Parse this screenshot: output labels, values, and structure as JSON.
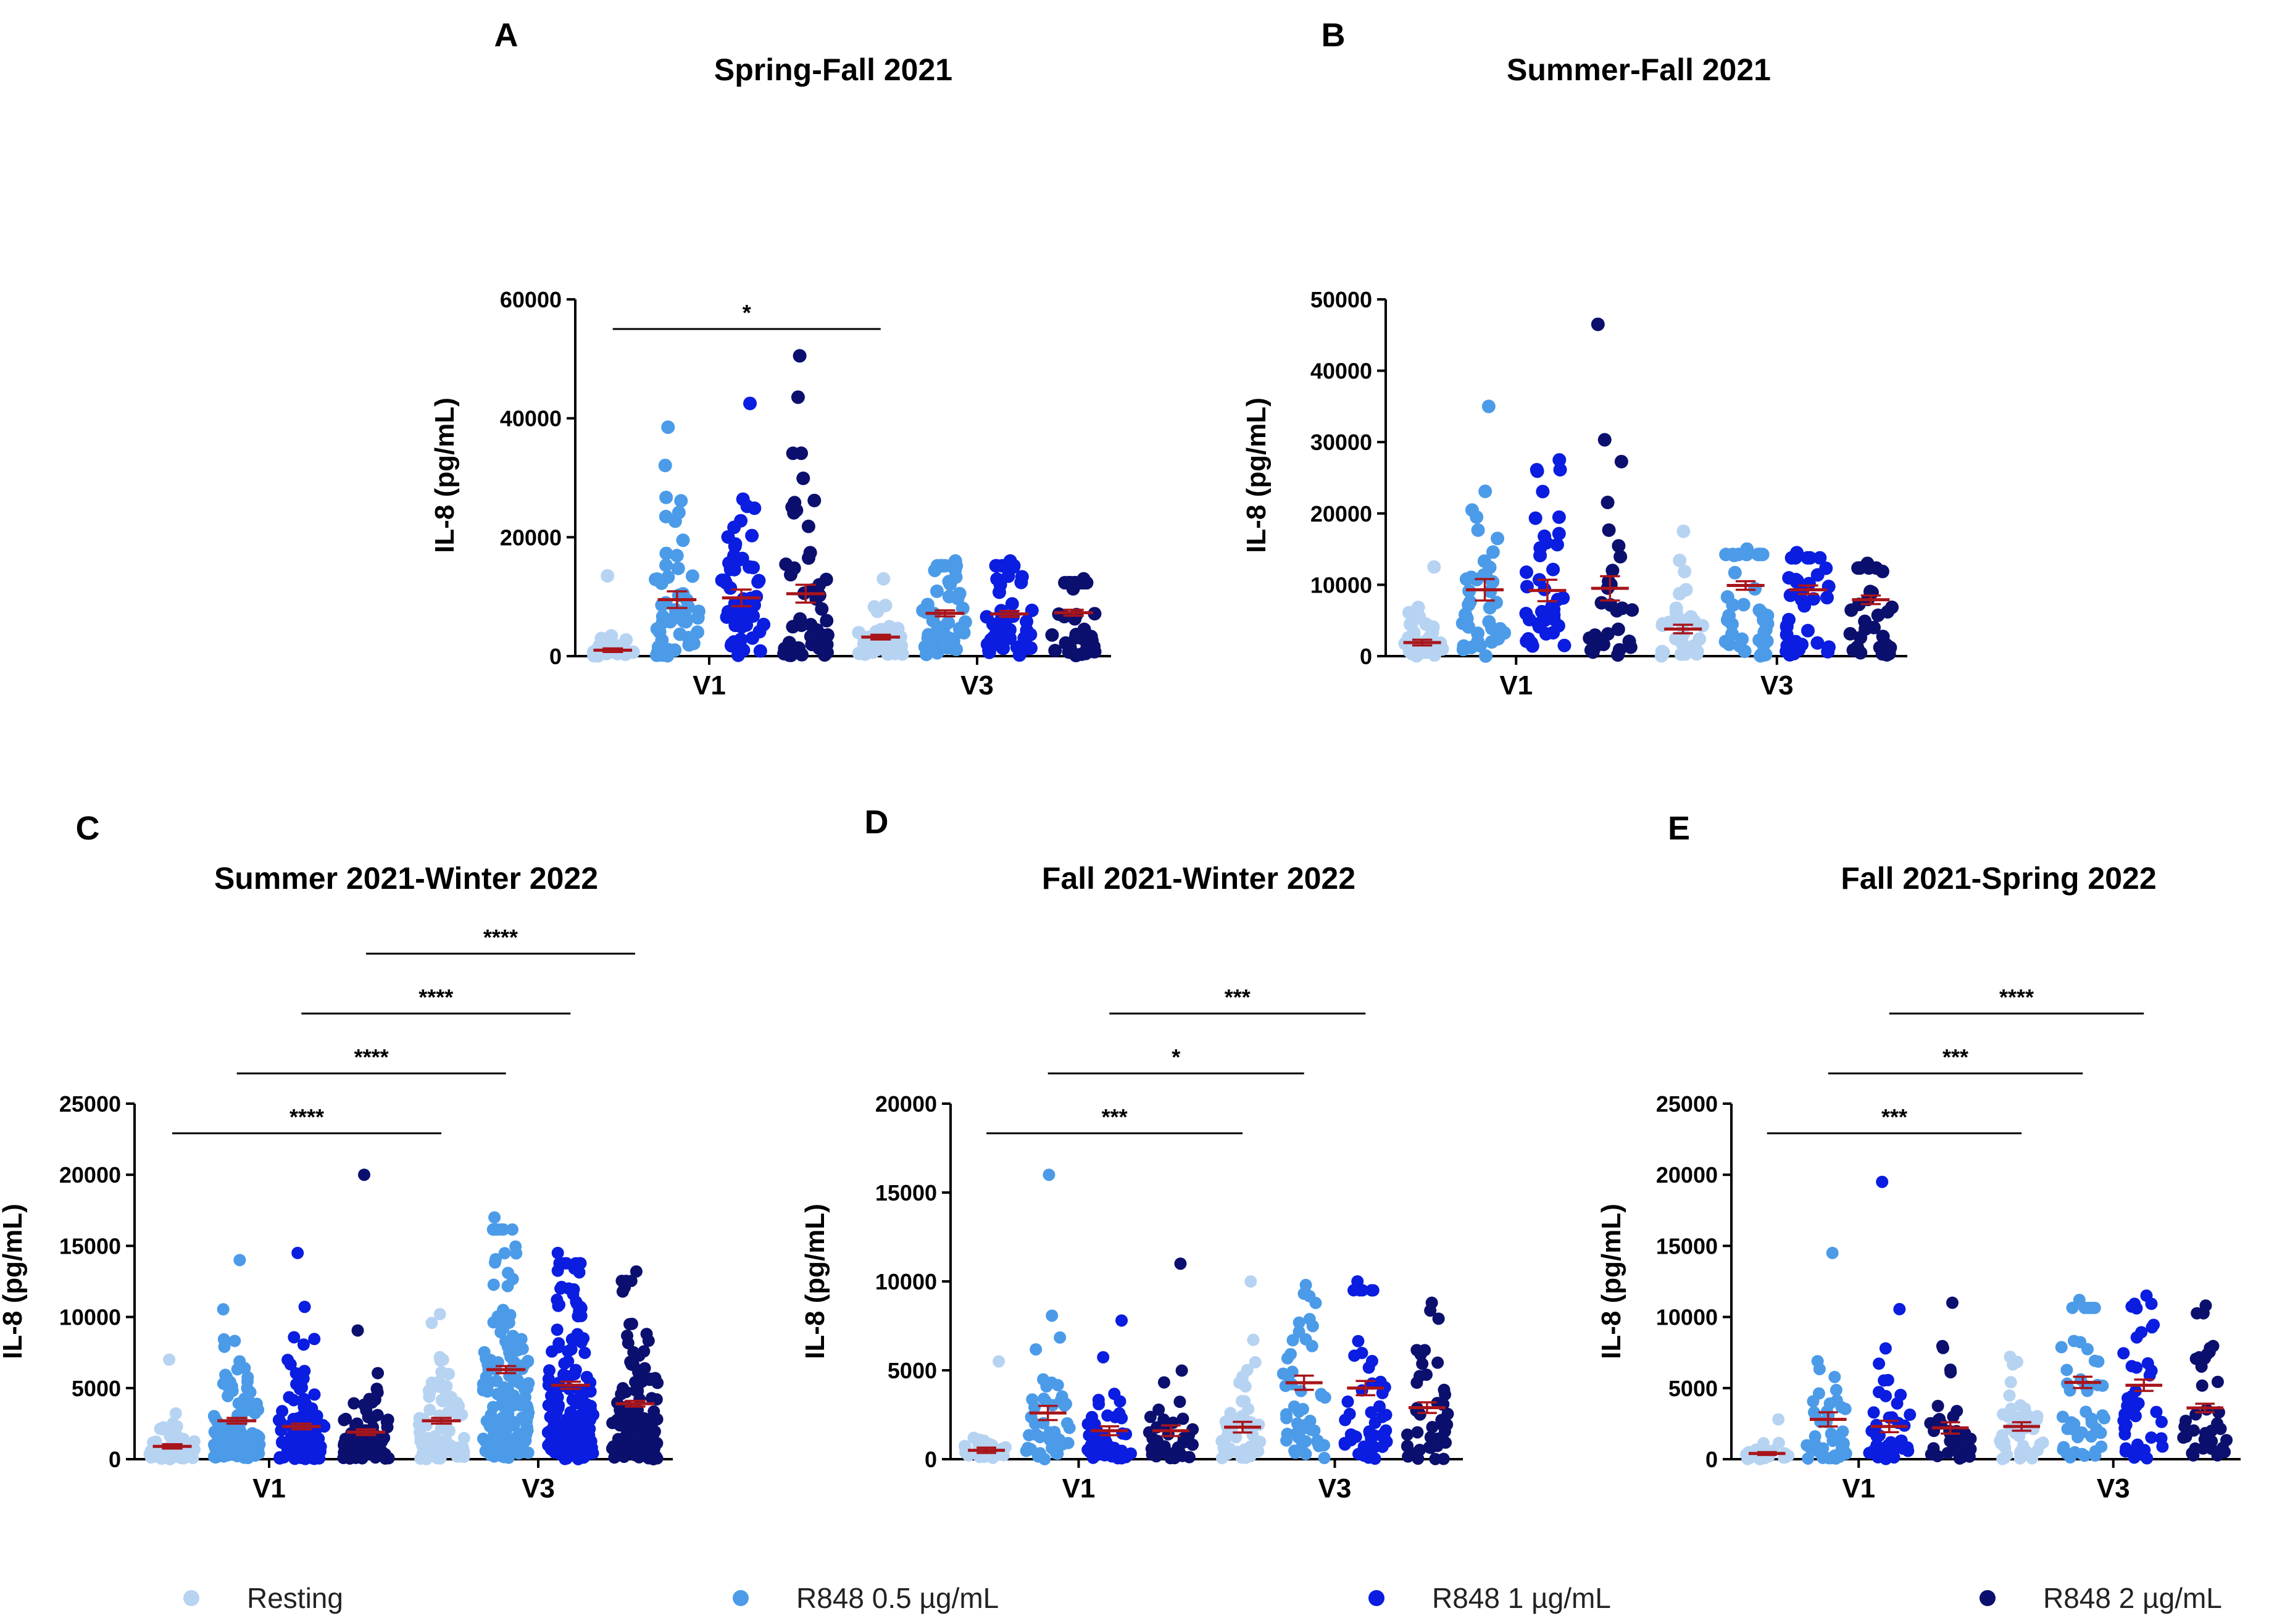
{
  "figure": {
    "colors": {
      "resting": "#b7d3f2",
      "r848_05": "#4c9be8",
      "r848_1": "#0a1de0",
      "r848_2": "#0b0f6e",
      "mean_line": "#a8151b",
      "axis": "#000000"
    },
    "legend": [
      {
        "label": "Resting",
        "color_key": "resting"
      },
      {
        "label": "R848 0.5 µg/mL",
        "color_key": "r848_05"
      },
      {
        "label": "R848 1 µg/mL",
        "color_key": "r848_1"
      },
      {
        "label": "R848 2 µg/mL",
        "color_key": "r848_2"
      }
    ]
  },
  "chart_data": [
    {
      "type": "scatter",
      "letter": "A",
      "title": "Spring-Fall 2021",
      "ylabel": "IL-8 (pg/mL)",
      "ylim": [
        0,
        60000
      ],
      "yticks": [
        0,
        20000,
        40000,
        60000
      ],
      "groups": [
        "V1",
        "V3"
      ],
      "series": [
        "Resting",
        "R848 0.5 µg/mL",
        "R848 1 µg/mL",
        "R848 2 µg/mL"
      ],
      "means": [
        [
          1000,
          9500,
          9800,
          10500
        ],
        [
          3200,
          7200,
          7100,
          7300
        ]
      ],
      "sem": [
        [
          300,
          1400,
          1400,
          1500
        ],
        [
          400,
          500,
          500,
          500
        ]
      ],
      "max": [
        [
          13500,
          38500,
          42500,
          50500
        ],
        [
          13000,
          16000,
          16000,
          13000
        ]
      ],
      "n": [
        [
          28,
          55,
          55,
          50
        ],
        [
          38,
          50,
          50,
          38
        ]
      ],
      "significance": [
        {
          "from": [
            0,
            0
          ],
          "to": [
            1,
            0
          ],
          "label": "*"
        }
      ]
    },
    {
      "type": "scatter",
      "letter": "B",
      "title": "Summer-Fall 2021",
      "ylabel": "IL-8 (pg/mL)",
      "ylim": [
        0,
        50000
      ],
      "yticks": [
        0,
        10000,
        20000,
        30000,
        40000,
        50000
      ],
      "groups": [
        "V1",
        "V3"
      ],
      "series": [
        "Resting",
        "R848 0.5 µg/mL",
        "R848 1 µg/mL",
        "R848 2 µg/mL"
      ],
      "means": [
        [
          1900,
          9300,
          9200,
          9500
        ],
        [
          3800,
          9900,
          9300,
          7900
        ]
      ],
      "sem": [
        [
          400,
          1500,
          1500,
          1700
        ],
        [
          600,
          600,
          600,
          600
        ]
      ],
      "max": [
        [
          12500,
          35000,
          27500,
          46500
        ],
        [
          17500,
          15000,
          14500,
          13000
        ]
      ],
      "n": [
        [
          30,
          40,
          40,
          30
        ],
        [
          28,
          40,
          38,
          32
        ]
      ],
      "significance": []
    },
    {
      "type": "scatter",
      "letter": "C",
      "title": "Summer 2021-Winter 2022",
      "ylabel": "IL-8 (pg/mL)",
      "ylim": [
        0,
        25000
      ],
      "yticks": [
        0,
        5000,
        10000,
        15000,
        20000,
        25000
      ],
      "groups": [
        "V1",
        "V3"
      ],
      "series": [
        "Resting",
        "R848 0.5 µg/mL",
        "R848 1 µg/mL",
        "R848 2 µg/mL"
      ],
      "means": [
        [
          900,
          2700,
          2300,
          1900
        ],
        [
          2700,
          6300,
          5200,
          3900
        ]
      ],
      "sem": [
        [
          150,
          200,
          200,
          200
        ],
        [
          200,
          250,
          250,
          200
        ]
      ],
      "max": [
        [
          7000,
          14000,
          14500,
          20000
        ],
        [
          10200,
          17000,
          14500,
          13200
        ]
      ],
      "n": [
        [
          70,
          110,
          100,
          75
        ],
        [
          95,
          160,
          160,
          130
        ]
      ],
      "significance": [
        {
          "from": [
            0,
            0
          ],
          "to": [
            1,
            0
          ],
          "label": "****"
        },
        {
          "from": [
            0,
            1
          ],
          "to": [
            1,
            1
          ],
          "label": "****"
        },
        {
          "from": [
            0,
            2
          ],
          "to": [
            1,
            2
          ],
          "label": "****"
        },
        {
          "from": [
            0,
            3
          ],
          "to": [
            1,
            3
          ],
          "label": "****"
        }
      ]
    },
    {
      "type": "scatter",
      "letter": "D",
      "title": "Fall 2021-Winter 2022",
      "ylabel": "IL-8 (pg/mL)",
      "ylim": [
        0,
        20000
      ],
      "yticks": [
        0,
        5000,
        10000,
        15000,
        20000
      ],
      "groups": [
        "V1",
        "V3"
      ],
      "series": [
        "Resting",
        "R848 0.5 µg/mL",
        "R848 1 µg/mL",
        "R848 2 µg/mL"
      ],
      "means": [
        [
          500,
          2600,
          1600,
          1600
        ],
        [
          1800,
          4300,
          4000,
          2900
        ]
      ],
      "sem": [
        [
          150,
          400,
          250,
          300
        ],
        [
          300,
          400,
          400,
          300
        ]
      ],
      "max": [
        [
          5500,
          16000,
          7800,
          11000
        ],
        [
          10000,
          9800,
          10000,
          8800
        ]
      ],
      "n": [
        [
          28,
          45,
          45,
          40
        ],
        [
          45,
          50,
          50,
          45
        ]
      ],
      "significance": [
        {
          "from": [
            0,
            0
          ],
          "to": [
            1,
            0
          ],
          "label": "***"
        },
        {
          "from": [
            0,
            1
          ],
          "to": [
            1,
            1
          ],
          "label": "*"
        },
        {
          "from": [
            0,
            2
          ],
          "to": [
            1,
            2
          ],
          "label": "***"
        }
      ]
    },
    {
      "type": "scatter",
      "letter": "E",
      "title": "Fall 2021-Spring 2022",
      "ylabel": "IL-8 (pg/mL)",
      "ylim": [
        0,
        25000
      ],
      "yticks": [
        0,
        5000,
        10000,
        15000,
        20000,
        25000
      ],
      "groups": [
        "V1",
        "V3"
      ],
      "series": [
        "Resting",
        "R848 0.5 µg/mL",
        "R848 1 µg/mL",
        "R848 2 µg/mL"
      ],
      "means": [
        [
          400,
          2800,
          2300,
          2200
        ],
        [
          2300,
          5400,
          5200,
          3600
        ]
      ],
      "sem": [
        [
          100,
          500,
          400,
          400
        ],
        [
          300,
          400,
          400,
          300
        ]
      ],
      "max": [
        [
          2800,
          14500,
          19500,
          11000
        ],
        [
          7200,
          11200,
          11500,
          10800
        ]
      ],
      "n": [
        [
          30,
          42,
          42,
          35
        ],
        [
          45,
          45,
          42,
          40
        ]
      ],
      "significance": [
        {
          "from": [
            0,
            0
          ],
          "to": [
            1,
            0
          ],
          "label": "***"
        },
        {
          "from": [
            0,
            1
          ],
          "to": [
            1,
            1
          ],
          "label": "***"
        },
        {
          "from": [
            0,
            2
          ],
          "to": [
            1,
            2
          ],
          "label": "****"
        }
      ]
    }
  ]
}
